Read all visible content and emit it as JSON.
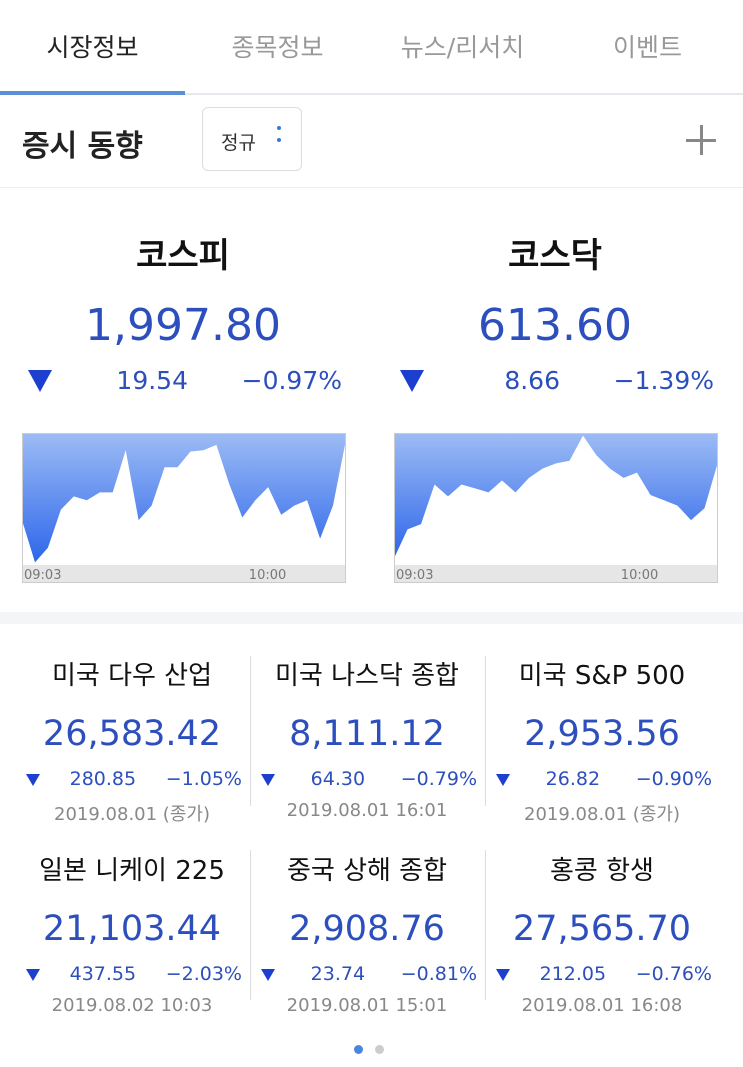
{
  "tabs": [
    "시장정보",
    "종목정보",
    "뉴스/리서치",
    "이벤트"
  ],
  "header": {
    "title": "증시 동향",
    "session_button": "정규"
  },
  "main_indices": [
    {
      "name": "코스피",
      "value": "1,997.80",
      "change": "19.54",
      "change_pct": "−0.97%",
      "chart": {
        "type": "area",
        "x_labels": [
          "09:03",
          "10:00"
        ],
        "ylim": [
          0,
          100
        ],
        "values": [
          34,
          2,
          13,
          42,
          52,
          49,
          55,
          55,
          87,
          34,
          45,
          74,
          74,
          86,
          87,
          91,
          61,
          36,
          49,
          59,
          38,
          45,
          49,
          20,
          45,
          95
        ]
      }
    },
    {
      "name": "코스닥",
      "value": "613.60",
      "change": "8.66",
      "change_pct": "−1.39%",
      "chart": {
        "type": "area",
        "x_labels": [
          "09:03",
          "10:00"
        ],
        "ylim": [
          0,
          100
        ],
        "values": [
          5,
          27,
          31,
          61,
          52,
          61,
          58,
          55,
          64,
          55,
          66,
          73,
          77,
          79,
          98,
          83,
          73,
          66,
          70,
          53,
          49,
          45,
          34,
          43,
          78
        ]
      }
    }
  ],
  "world_indices": [
    {
      "name": "미국 다우 산업",
      "value": "26,583.42",
      "change": "280.85",
      "change_pct": "−1.05%",
      "date": "2019.08.01 (종가)"
    },
    {
      "name": "미국 나스닥 종합",
      "value": "8,111.12",
      "change": "64.30",
      "change_pct": "−0.79%",
      "date": "2019.08.01 16:01"
    },
    {
      "name": "미국 S&P 500",
      "value": "2,953.56",
      "change": "26.82",
      "change_pct": "−0.90%",
      "date": "2019.08.01 (종가)"
    },
    {
      "name": "일본 니케이 225",
      "value": "21,103.44",
      "change": "437.55",
      "change_pct": "−2.03%",
      "date": "2019.08.02 10:03"
    },
    {
      "name": "중국 상해 종합",
      "value": "2,908.76",
      "change": "23.74",
      "change_pct": "−0.81%",
      "date": "2019.08.01 15:01"
    },
    {
      "name": "홍콩 항생",
      "value": "27,565.70",
      "change": "212.05",
      "change_pct": "−0.76%",
      "date": "2019.08.01 16:08"
    }
  ]
}
